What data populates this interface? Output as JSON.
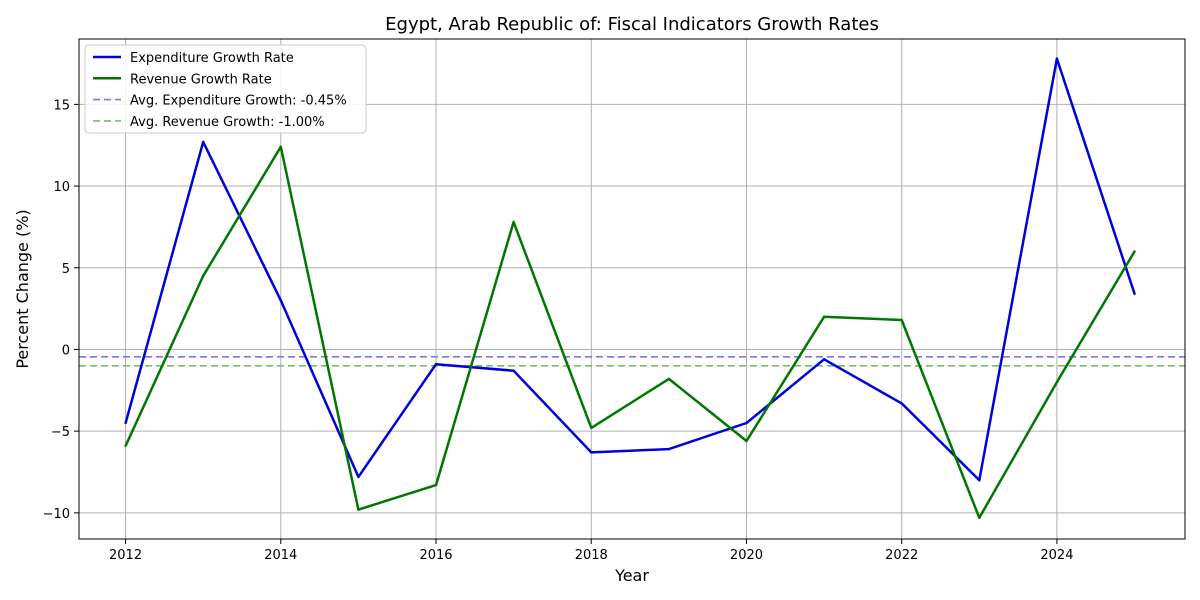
{
  "chart_data": {
    "type": "line",
    "title": "Egypt, Arab Republic of: Fiscal Indicators Growth Rates",
    "xlabel": "Year",
    "ylabel": "Percent Change (%)",
    "xlim": [
      2011.4,
      2025.65
    ],
    "ylim": [
      -11.6,
      19.0
    ],
    "x_ticks": [
      2012,
      2014,
      2016,
      2018,
      2020,
      2022,
      2024
    ],
    "y_ticks": [
      -10,
      -5,
      0,
      5,
      10,
      15
    ],
    "x_tick_labels": [
      "2012",
      "2014",
      "2016",
      "2018",
      "2020",
      "2022",
      "2024"
    ],
    "y_tick_labels": [
      "−10",
      "−5",
      "0",
      "5",
      "10",
      "15"
    ],
    "grid": true,
    "legend_position": "top-left",
    "x": [
      2012,
      2013,
      2014,
      2015,
      2016,
      2017,
      2018,
      2019,
      2020,
      2021,
      2022,
      2023,
      2024,
      2025
    ],
    "series": [
      {
        "name": "Expenditure Growth Rate",
        "color": "#0000dd",
        "values": [
          -4.5,
          12.7,
          3.0,
          -7.8,
          -0.9,
          -1.3,
          -6.3,
          -6.1,
          -4.5,
          -0.6,
          -3.3,
          -8.0,
          17.8,
          3.4
        ]
      },
      {
        "name": "Revenue Growth Rate",
        "color": "#007700",
        "values": [
          -5.9,
          4.5,
          12.4,
          -9.8,
          -8.3,
          7.8,
          -4.8,
          -1.8,
          -5.6,
          2.0,
          1.8,
          -10.3,
          -2.0,
          6.0
        ]
      }
    ],
    "reference_lines": [
      {
        "label": "Avg. Expenditure Growth: -0.45%",
        "value": -0.45,
        "color": "#7777ee"
      },
      {
        "label": "Avg. Revenue Growth: -1.00%",
        "value": -1.0,
        "color": "#77bb77"
      }
    ]
  }
}
